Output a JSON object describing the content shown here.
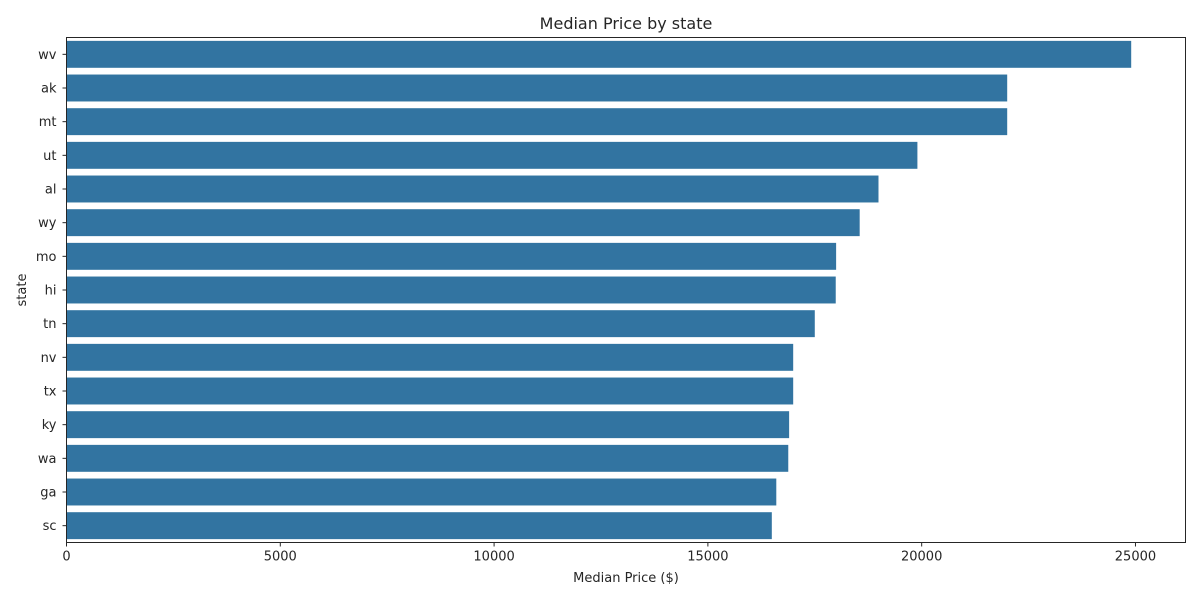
{
  "chart_data": {
    "type": "bar",
    "orientation": "horizontal",
    "title": "Median Price by state",
    "xlabel": "Median Price ($)",
    "ylabel": "state",
    "categories": [
      "wv",
      "ak",
      "mt",
      "ut",
      "al",
      "wy",
      "mo",
      "hi",
      "tn",
      "nv",
      "tx",
      "ky",
      "wa",
      "ga",
      "sc"
    ],
    "values": [
      24900,
      22000,
      22000,
      19900,
      18990,
      18550,
      17999,
      17990,
      17500,
      16995,
      16995,
      16900,
      16880,
      16600,
      16495
    ],
    "xlim": [
      0,
      26170
    ],
    "xticks": [
      0,
      5000,
      10000,
      15000,
      20000,
      25000
    ],
    "bar_color": "#3274a1",
    "grid": false,
    "legend": "none"
  }
}
